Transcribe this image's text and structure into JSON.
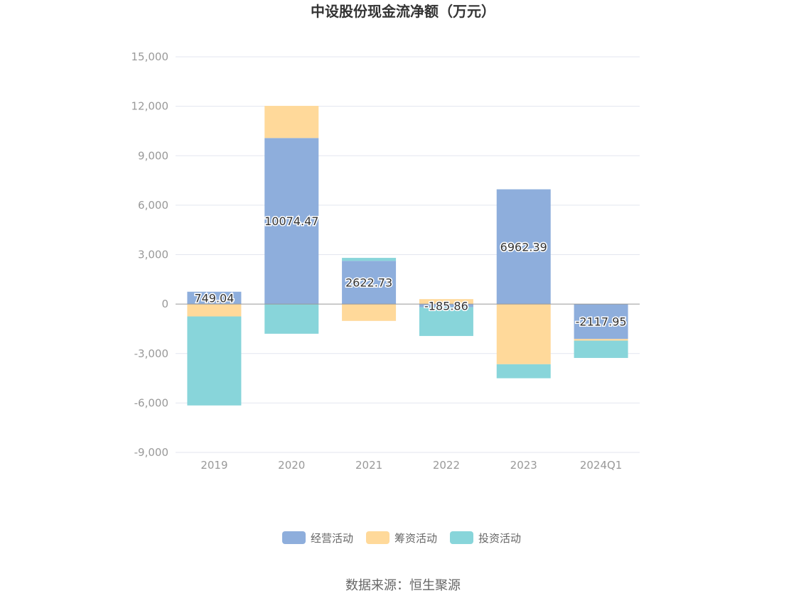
{
  "chart_data": {
    "type": "bar",
    "stacked": true,
    "title": "中设股份现金流净额（万元）",
    "xlabel": "",
    "ylabel": "",
    "categories": [
      "2019",
      "2020",
      "2021",
      "2022",
      "2023",
      "2024Q1"
    ],
    "ylim": [
      -9000,
      15000
    ],
    "yticks": [
      15000,
      12000,
      9000,
      6000,
      3000,
      0,
      -3000,
      -6000,
      -9000
    ],
    "ytick_labels": [
      "15,000",
      "12,000",
      "9,000",
      "6,000",
      "3,000",
      "0",
      "-3,000",
      "-6,000",
      "-9,000"
    ],
    "series": [
      {
        "name": "经营活动",
        "color": "#8eaedc",
        "values": [
          749.04,
          10074.47,
          2622.73,
          -185.86,
          6962.39,
          -2117.95
        ]
      },
      {
        "name": "筹资活动",
        "color": "#ffd99a",
        "values": [
          -750,
          1950,
          -1020,
          300,
          -3650,
          -100
        ]
      },
      {
        "name": "投资活动",
        "color": "#88d5da",
        "values": [
          -5400,
          -1800,
          180,
          -1750,
          -850,
          -1050
        ]
      }
    ],
    "data_labels": [
      "749.04",
      "10074.47",
      "2622.73",
      "-185.86",
      "6962.39",
      "-2117.95"
    ],
    "legend_position": "bottom",
    "grid": true
  },
  "source_text": "数据来源：恒生聚源"
}
